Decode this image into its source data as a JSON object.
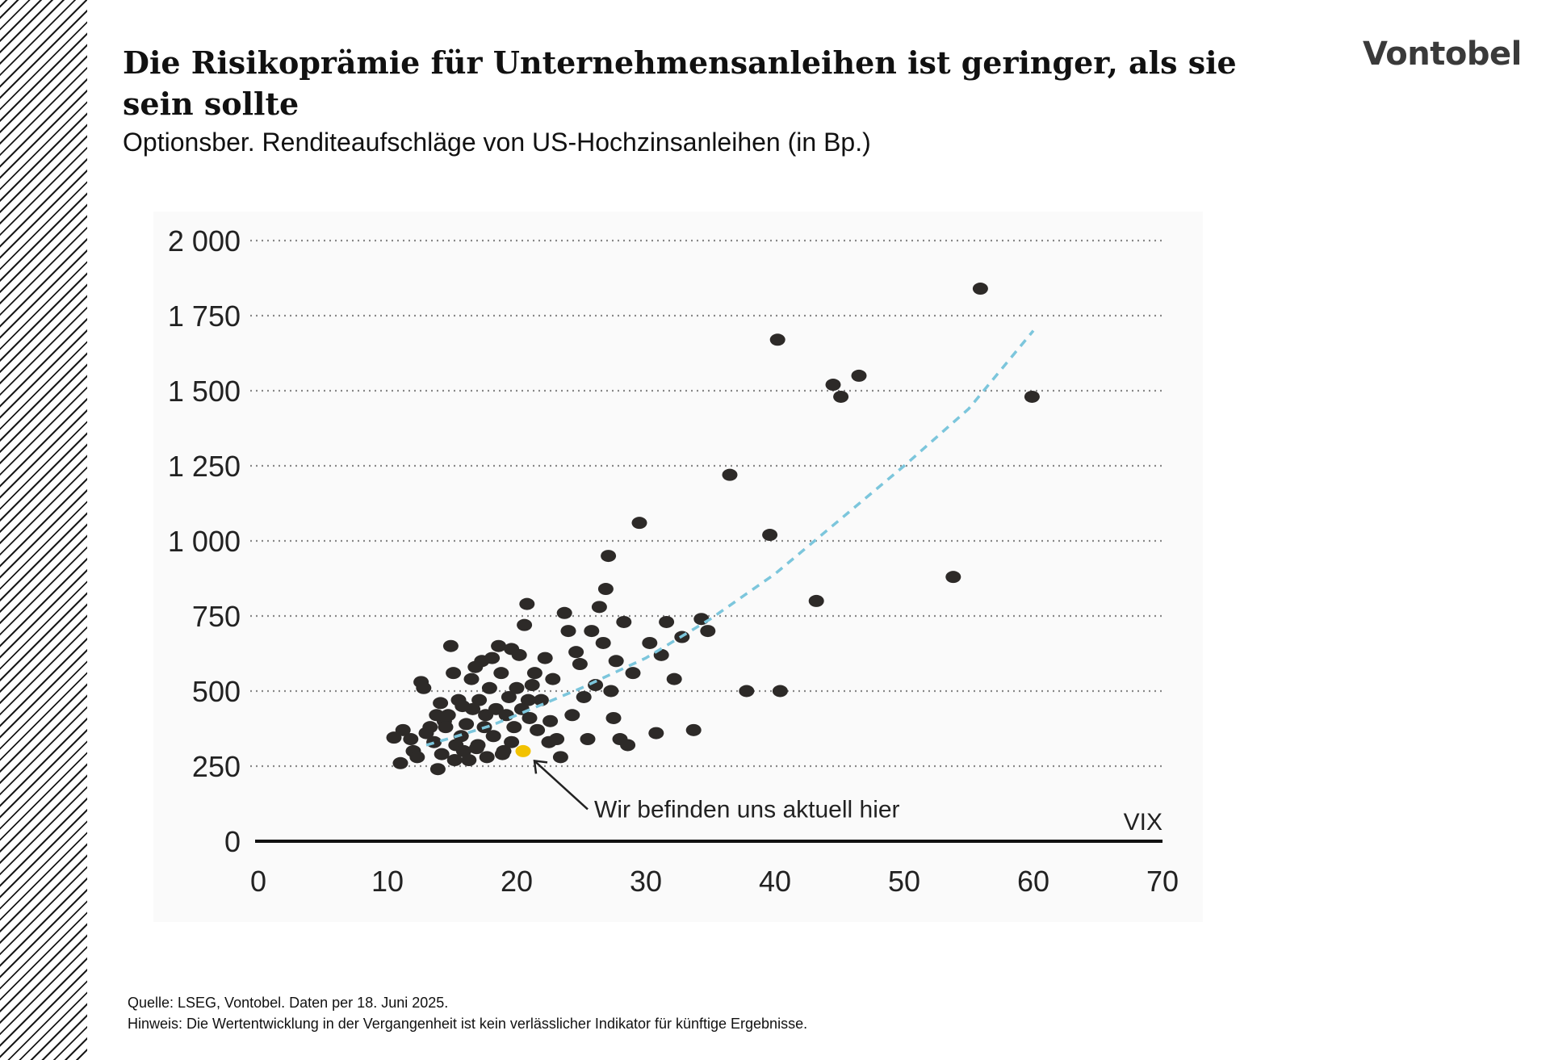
{
  "header": {
    "title": "Die Risikoprämie für Unternehmensanleihen ist geringer, als sie sein sollte",
    "subtitle": "Optionsber. Renditeaufschläge von US-Hochzinsanleihen (in Bp.)",
    "logo": "Vontobel"
  },
  "footer": {
    "source": "Quelle: LSEG, Vontobel. Daten per  18. Juni 2025.",
    "note": "Hinweis: Die Wertentwicklung in der Vergangenheit ist kein verlässlicher Indikator für künftige Ergebnisse."
  },
  "colors": {
    "points": "#2d2a28",
    "current": "#f2c200",
    "trend": "#7cc6dc",
    "grid": "#888888",
    "axis": "#111111"
  },
  "chart_data": {
    "type": "scatter",
    "xlabel": "VIX",
    "ylabel": "",
    "xlim": [
      0,
      70
    ],
    "ylim": [
      0,
      2000
    ],
    "x_ticks": [
      "0",
      "10",
      "20",
      "30",
      "40",
      "50",
      "60",
      "70"
    ],
    "y_ticks": [
      "0",
      "250",
      "500",
      "750",
      "1 000",
      "1 250",
      "1 500",
      "1 750",
      "2 000"
    ],
    "grid": "horizontal dotted",
    "annotation": {
      "text": "Wir befinden uns aktuell hier",
      "x": 20.5,
      "y": 300
    },
    "current_point": {
      "x": 20.5,
      "y": 300
    },
    "trendline": {
      "style": "dashed",
      "points": [
        [
          13,
          320
        ],
        [
          15,
          345
        ],
        [
          18,
          385
        ],
        [
          20,
          420
        ],
        [
          25,
          510
        ],
        [
          30,
          610
        ],
        [
          35,
          740
        ],
        [
          40,
          890
        ],
        [
          45,
          1070
        ],
        [
          50,
          1250
        ],
        [
          55,
          1440
        ],
        [
          60,
          1700
        ]
      ]
    },
    "series": [
      {
        "points": [
          [
            10.5,
            345
          ],
          [
            11,
            260
          ],
          [
            11.2,
            370
          ],
          [
            11.8,
            340
          ],
          [
            12,
            300
          ],
          [
            12.3,
            280
          ],
          [
            12.6,
            530
          ],
          [
            12.8,
            510
          ],
          [
            13,
            360
          ],
          [
            13.3,
            380
          ],
          [
            13.6,
            330
          ],
          [
            13.9,
            240
          ],
          [
            14.1,
            460
          ],
          [
            14.2,
            290
          ],
          [
            14.4,
            400
          ],
          [
            14.7,
            420
          ],
          [
            14.9,
            650
          ],
          [
            15.1,
            560
          ],
          [
            15.3,
            320
          ],
          [
            15.5,
            470
          ],
          [
            15.7,
            350
          ],
          [
            15.9,
            300
          ],
          [
            16.1,
            390
          ],
          [
            16.3,
            270
          ],
          [
            16.5,
            540
          ],
          [
            16.6,
            440
          ],
          [
            16.8,
            580
          ],
          [
            17.0,
            320
          ],
          [
            17.1,
            470
          ],
          [
            17.3,
            600
          ],
          [
            17.5,
            380
          ],
          [
            17.7,
            280
          ],
          [
            17.9,
            510
          ],
          [
            18.1,
            610
          ],
          [
            18.2,
            350
          ],
          [
            18.4,
            440
          ],
          [
            18.6,
            650
          ],
          [
            18.8,
            560
          ],
          [
            19.0,
            300
          ],
          [
            19.2,
            420
          ],
          [
            19.4,
            480
          ],
          [
            19.6,
            640
          ],
          [
            19.8,
            380
          ],
          [
            20.0,
            510
          ],
          [
            20.2,
            620
          ],
          [
            20.4,
            440
          ],
          [
            20.6,
            720
          ],
          [
            20.8,
            790
          ],
          [
            21.0,
            410
          ],
          [
            21.2,
            520
          ],
          [
            21.4,
            560
          ],
          [
            21.6,
            370
          ],
          [
            21.9,
            470
          ],
          [
            22.2,
            610
          ],
          [
            22.5,
            330
          ],
          [
            22.8,
            540
          ],
          [
            23.1,
            340
          ],
          [
            23.4,
            280
          ],
          [
            23.7,
            760
          ],
          [
            24.0,
            700
          ],
          [
            24.3,
            420
          ],
          [
            24.6,
            630
          ],
          [
            24.9,
            590
          ],
          [
            25.2,
            480
          ],
          [
            25.5,
            340
          ],
          [
            25.8,
            700
          ],
          [
            26.1,
            520
          ],
          [
            26.4,
            780
          ],
          [
            26.7,
            660
          ],
          [
            26.9,
            840
          ],
          [
            27.1,
            950
          ],
          [
            27.3,
            500
          ],
          [
            27.5,
            410
          ],
          [
            27.7,
            600
          ],
          [
            28.0,
            340
          ],
          [
            28.3,
            730
          ],
          [
            28.6,
            320
          ],
          [
            29.0,
            560
          ],
          [
            29.5,
            1060
          ],
          [
            30.3,
            660
          ],
          [
            30.8,
            360
          ],
          [
            31.2,
            620
          ],
          [
            31.6,
            730
          ],
          [
            32.2,
            540
          ],
          [
            32.8,
            680
          ],
          [
            33.7,
            370
          ],
          [
            34.3,
            740
          ],
          [
            34.8,
            700
          ],
          [
            36.5,
            1220
          ],
          [
            37.8,
            500
          ],
          [
            39.6,
            1020
          ],
          [
            40.2,
            1670
          ],
          [
            40.4,
            500
          ],
          [
            43.2,
            800
          ],
          [
            44.5,
            1520
          ],
          [
            45.1,
            1480
          ],
          [
            46.5,
            1550
          ],
          [
            53.8,
            880
          ],
          [
            55.9,
            1840
          ],
          [
            59.9,
            1480
          ],
          [
            13.8,
            420
          ],
          [
            14.5,
            380
          ],
          [
            15.8,
            450
          ],
          [
            16.9,
            310
          ],
          [
            17.6,
            420
          ],
          [
            18.9,
            290
          ],
          [
            19.6,
            330
          ],
          [
            20.9,
            470
          ],
          [
            22.6,
            400
          ],
          [
            15.2,
            270
          ]
        ]
      }
    ]
  }
}
